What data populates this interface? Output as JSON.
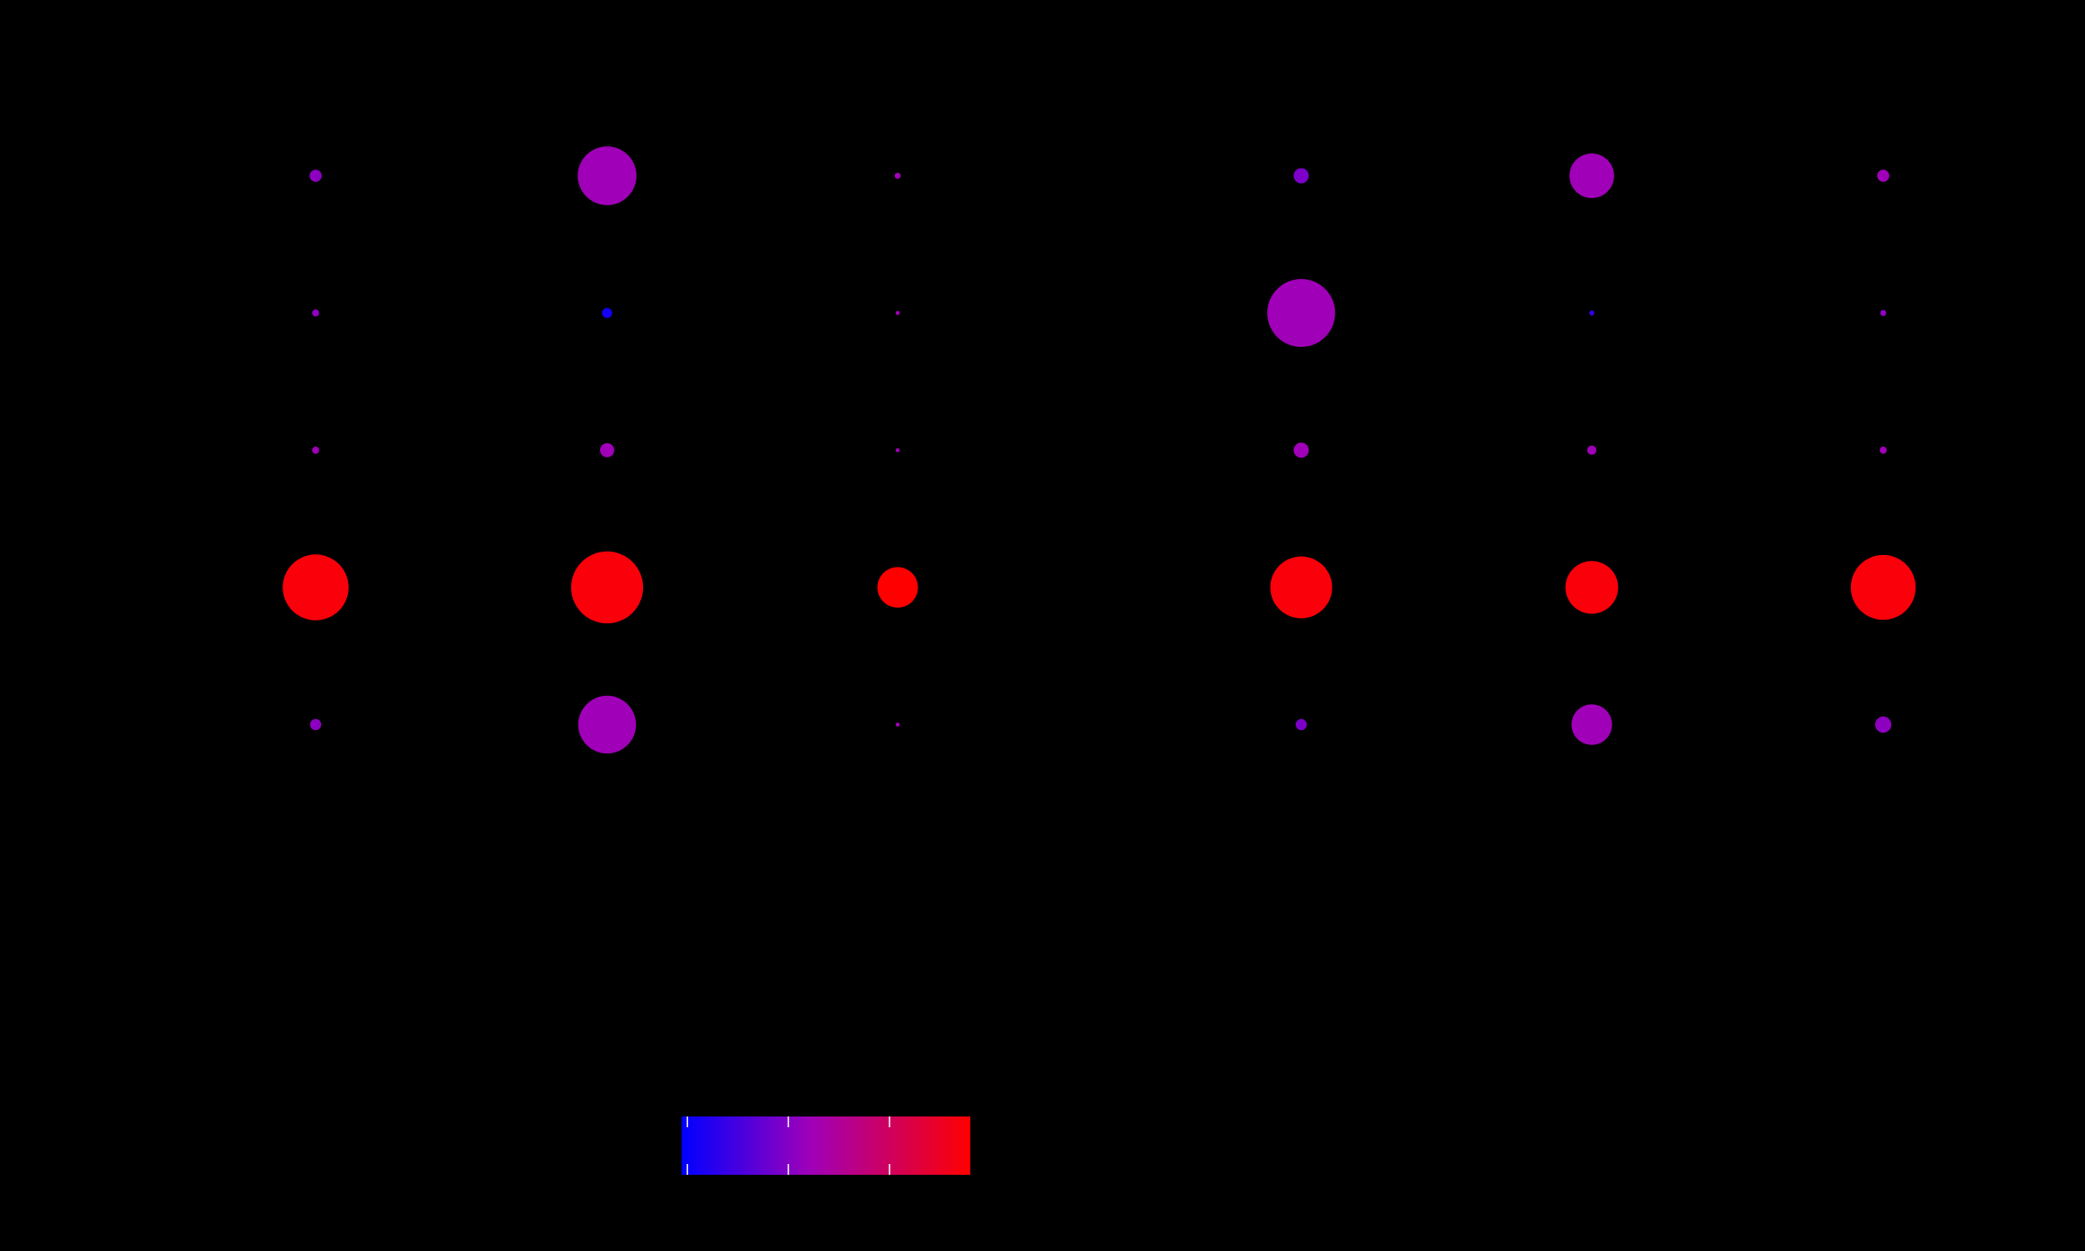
{
  "chart_data": {
    "type": "scatter",
    "subtype": "dot-matrix",
    "background": "#000000",
    "panels": [
      {
        "columns": 3,
        "rows": 5,
        "points": [
          {
            "col": 0,
            "row": 0,
            "size": 12,
            "color_value": 0.4
          },
          {
            "col": 1,
            "row": 0,
            "size": 58,
            "color_value": 0.45
          },
          {
            "col": 2,
            "row": 0,
            "size": 6,
            "color_value": 0.45
          },
          {
            "col": 0,
            "row": 1,
            "size": 7,
            "color_value": 0.4
          },
          {
            "col": 1,
            "row": 1,
            "size": 10,
            "color_value": 0.05
          },
          {
            "col": 2,
            "row": 1,
            "size": 4,
            "color_value": 0.45
          },
          {
            "col": 0,
            "row": 2,
            "size": 7,
            "color_value": 0.45
          },
          {
            "col": 1,
            "row": 2,
            "size": 14,
            "color_value": 0.45
          },
          {
            "col": 2,
            "row": 2,
            "size": 4,
            "color_value": 0.45
          },
          {
            "col": 0,
            "row": 3,
            "size": 65,
            "color_value": 0.97
          },
          {
            "col": 1,
            "row": 3,
            "size": 71,
            "color_value": 0.97
          },
          {
            "col": 2,
            "row": 3,
            "size": 40,
            "color_value": 1.0
          },
          {
            "col": 0,
            "row": 4,
            "size": 11,
            "color_value": 0.4
          },
          {
            "col": 1,
            "row": 4,
            "size": 57,
            "color_value": 0.45
          },
          {
            "col": 2,
            "row": 4,
            "size": 4,
            "color_value": 0.45
          }
        ]
      },
      {
        "columns": 3,
        "rows": 5,
        "points": [
          {
            "col": 0,
            "row": 0,
            "size": 15,
            "color_value": 0.35
          },
          {
            "col": 1,
            "row": 0,
            "size": 44,
            "color_value": 0.45
          },
          {
            "col": 2,
            "row": 0,
            "size": 12,
            "color_value": 0.45
          },
          {
            "col": 0,
            "row": 1,
            "size": 67,
            "color_value": 0.45
          },
          {
            "col": 1,
            "row": 1,
            "size": 5,
            "color_value": 0.15
          },
          {
            "col": 2,
            "row": 1,
            "size": 6,
            "color_value": 0.4
          },
          {
            "col": 0,
            "row": 2,
            "size": 15,
            "color_value": 0.45
          },
          {
            "col": 1,
            "row": 2,
            "size": 9,
            "color_value": 0.45
          },
          {
            "col": 2,
            "row": 2,
            "size": 7,
            "color_value": 0.45
          },
          {
            "col": 0,
            "row": 3,
            "size": 61,
            "color_value": 0.97
          },
          {
            "col": 1,
            "row": 3,
            "size": 52,
            "color_value": 0.97
          },
          {
            "col": 2,
            "row": 3,
            "size": 64,
            "color_value": 0.97
          },
          {
            "col": 0,
            "row": 4,
            "size": 11,
            "color_value": 0.35
          },
          {
            "col": 1,
            "row": 4,
            "size": 40,
            "color_value": 0.45
          },
          {
            "col": 2,
            "row": 4,
            "size": 16,
            "color_value": 0.4
          }
        ]
      }
    ],
    "colorscale": {
      "from": "#0000ff",
      "mid": "#a000b8",
      "to": "#ff0000",
      "ticks": [
        0.02,
        0.37,
        0.72
      ]
    },
    "legend_placement": "bottom-left"
  }
}
